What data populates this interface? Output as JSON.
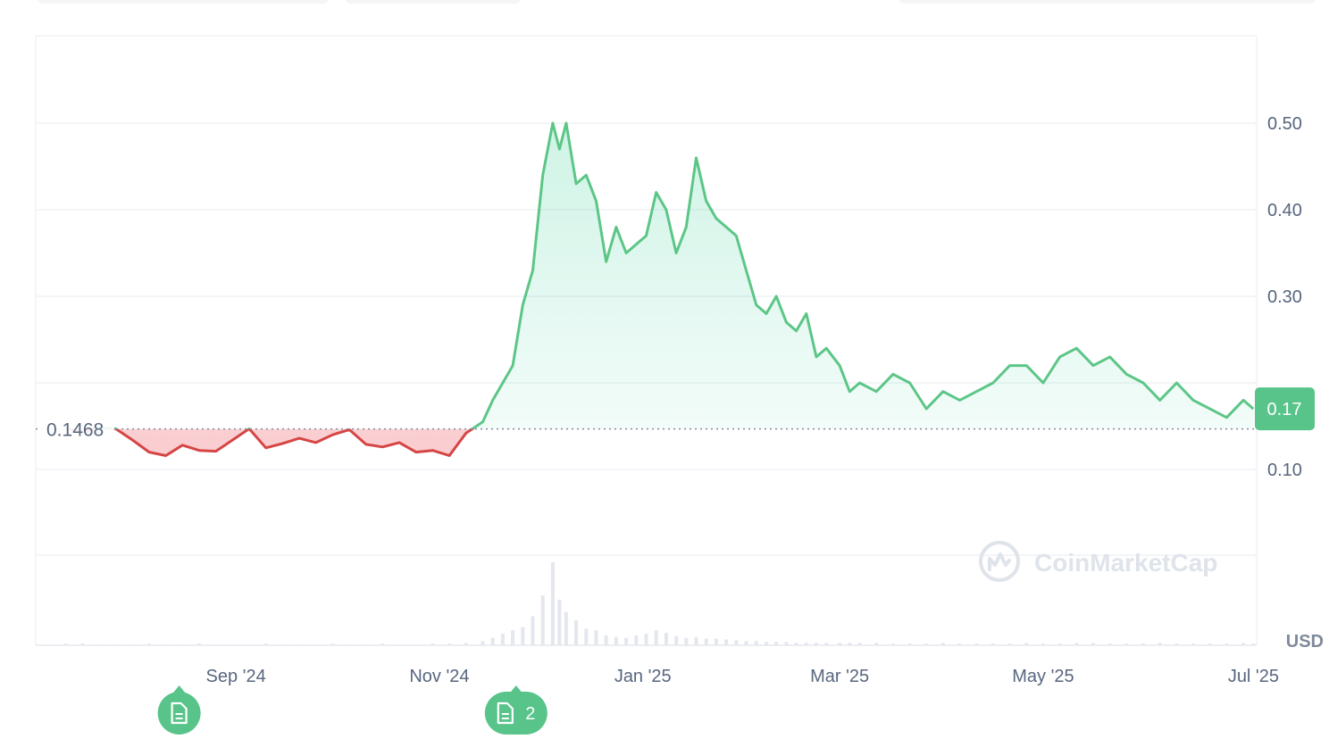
{
  "chart_data": {
    "type": "area",
    "currency": "USD",
    "baseline_value": 0.1468,
    "baseline_label": "0.1468",
    "current_price_label": "0.17",
    "watermark": "CoinMarketCap",
    "y_ticks": [
      "0.10",
      "0.30",
      "0.40",
      "0.50"
    ],
    "ylim": [
      0.0,
      0.6
    ],
    "x_ticks": [
      "Sep '24",
      "Nov '24",
      "Jan '25",
      "Mar '25",
      "May '25",
      "Jul '25"
    ],
    "colors": {
      "up": "#16c784",
      "up_line": "#5cc687",
      "down": "#ea3943",
      "down_line": "#d64545",
      "badge": "#58c48a"
    },
    "series": [
      {
        "x": [
          "2024-07-12",
          "2024-07-17",
          "2024-07-22",
          "2024-07-27",
          "2024-08-01",
          "2024-08-06",
          "2024-08-11",
          "2024-08-16",
          "2024-08-21",
          "2024-08-26",
          "2024-08-31",
          "2024-09-05",
          "2024-09-10",
          "2024-09-15",
          "2024-09-20",
          "2024-09-25",
          "2024-09-30",
          "2024-10-05",
          "2024-10-10",
          "2024-10-15",
          "2024-10-20",
          "2024-10-25",
          "2024-10-30",
          "2024-11-04",
          "2024-11-09",
          "2024-11-14",
          "2024-11-17",
          "2024-11-20",
          "2024-11-23",
          "2024-11-26",
          "2024-11-29",
          "2024-12-02",
          "2024-12-05",
          "2024-12-07",
          "2024-12-09",
          "2024-12-12",
          "2024-12-15",
          "2024-12-18",
          "2024-12-21",
          "2024-12-24",
          "2024-12-27",
          "2024-12-30",
          "2025-01-02",
          "2025-01-05",
          "2025-01-08",
          "2025-01-11",
          "2025-01-14",
          "2025-01-17",
          "2025-01-20",
          "2025-01-23",
          "2025-01-26",
          "2025-01-29",
          "2025-02-01",
          "2025-02-04",
          "2025-02-07",
          "2025-02-10",
          "2025-02-13",
          "2025-02-16",
          "2025-02-19",
          "2025-02-22",
          "2025-02-25",
          "2025-03-01",
          "2025-03-04",
          "2025-03-07",
          "2025-03-12",
          "2025-03-17",
          "2025-03-22",
          "2025-03-27",
          "2025-04-01",
          "2025-04-06",
          "2025-04-11",
          "2025-04-16",
          "2025-04-21",
          "2025-04-26",
          "2025-05-01",
          "2025-05-06",
          "2025-05-11",
          "2025-05-16",
          "2025-05-21",
          "2025-05-26",
          "2025-05-31",
          "2025-06-05",
          "2025-06-10",
          "2025-06-15",
          "2025-06-20",
          "2025-06-25",
          "2025-06-30",
          "2025-07-03"
        ],
        "values": [
          0.148,
          0.143,
          0.148,
          0.147,
          0.134,
          0.12,
          0.116,
          0.128,
          0.122,
          0.121,
          0.134,
          0.147,
          0.125,
          0.13,
          0.136,
          0.131,
          0.14,
          0.146,
          0.129,
          0.126,
          0.131,
          0.12,
          0.122,
          0.116,
          0.142,
          0.155,
          0.18,
          0.2,
          0.22,
          0.29,
          0.33,
          0.44,
          0.5,
          0.47,
          0.5,
          0.43,
          0.44,
          0.41,
          0.34,
          0.38,
          0.35,
          0.36,
          0.37,
          0.42,
          0.4,
          0.35,
          0.38,
          0.46,
          0.41,
          0.39,
          0.38,
          0.37,
          0.33,
          0.29,
          0.28,
          0.3,
          0.27,
          0.26,
          0.28,
          0.23,
          0.24,
          0.22,
          0.19,
          0.2,
          0.19,
          0.21,
          0.2,
          0.17,
          0.19,
          0.18,
          0.19,
          0.2,
          0.22,
          0.22,
          0.2,
          0.23,
          0.24,
          0.22,
          0.23,
          0.21,
          0.2,
          0.18,
          0.2,
          0.18,
          0.17,
          0.16,
          0.18,
          0.17
        ]
      }
    ],
    "volume_bars": [
      2,
      2,
      1,
      1,
      1,
      2,
      1,
      1,
      2,
      1,
      1,
      1,
      2,
      1,
      1,
      1,
      2,
      1,
      1,
      2,
      1,
      1,
      2,
      2,
      3,
      5,
      9,
      14,
      18,
      22,
      35,
      60,
      100,
      55,
      40,
      30,
      20,
      18,
      12,
      10,
      9,
      12,
      14,
      18,
      15,
      11,
      9,
      10,
      8,
      8,
      7,
      6,
      5,
      5,
      4,
      4,
      4,
      3,
      3,
      3,
      3,
      3,
      3,
      3,
      3,
      2,
      2,
      2,
      3,
      2,
      2,
      2,
      2,
      3,
      2,
      2,
      3,
      3,
      2,
      2,
      2,
      3,
      2,
      2,
      2,
      2,
      3,
      2
    ],
    "event_markers": [
      {
        "date": "2024-08-15",
        "count": ""
      },
      {
        "date": "2024-11-24",
        "count": "2"
      }
    ]
  }
}
